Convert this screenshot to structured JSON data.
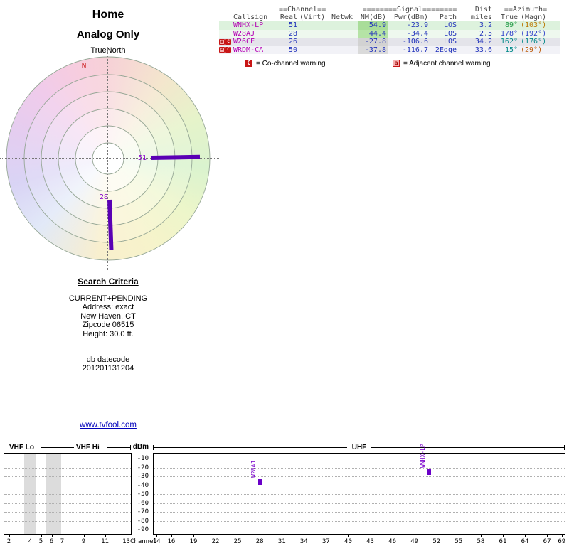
{
  "palette": {
    "bar_purple": "#5a00b4",
    "marker_purple": "#6a00c8",
    "callsign_magenta": "#b400b4",
    "value_blue": "#2233bb",
    "link_blue": "#0000bb",
    "warning_red": "#c81616",
    "north_red": "#cc2222"
  },
  "header": {
    "title": "Home",
    "subtitle": "Analog Only",
    "true_north_label": "TrueNorth",
    "north_marker": "N"
  },
  "radar": {
    "bars": [
      {
        "channel": "51",
        "azimuth_deg": 89,
        "length": 69
      },
      {
        "channel": "28",
        "azimuth_deg": 178,
        "length": 71
      }
    ]
  },
  "station_table": {
    "group_headers": {
      "channel": "==Channel==",
      "signal": "========Signal========",
      "dist": "Dist",
      "azimuth": "==Azimuth="
    },
    "column_headers": {
      "callsign": "Callsign",
      "real": "Real",
      "virt": "(Virt)",
      "netwk": "Netwk",
      "nm": "NM(dB)",
      "pwr": "Pwr(dBm)",
      "path": "Path",
      "miles": "miles",
      "true": "True",
      "magn": "(Magn)"
    },
    "rows": [
      {
        "warnings": [],
        "callsign": "WNHX-LP",
        "real": "51",
        "virt": "",
        "netwk": "",
        "nm": "54.9",
        "pwr": "-23.9",
        "path": "LOS",
        "miles": "3.2",
        "true_az": "89°",
        "magn_az": "(103°)",
        "row_bg": "#ddf2dd",
        "nm_bg": "#a9dd99",
        "true_color": "#1f9944",
        "magn_color": "#bb7700"
      },
      {
        "warnings": [],
        "callsign": "W28AJ",
        "real": "28",
        "virt": "",
        "netwk": "",
        "nm": "44.4",
        "pwr": "-34.4",
        "path": "LOS",
        "miles": "2.5",
        "true_az": "178°",
        "magn_az": "(192°)",
        "row_bg": "#eef8ee",
        "nm_bg": "#b5e3a5",
        "true_color": "#3344cc",
        "magn_color": "#3344cc"
      },
      {
        "warnings": [
          "a",
          "C"
        ],
        "callsign": "W26CE",
        "real": "26",
        "virt": "",
        "netwk": "",
        "nm": "-27.8",
        "pwr": "-106.6",
        "path": "LOS",
        "miles": "34.2",
        "true_az": "162°",
        "magn_az": "(176°)",
        "row_bg": "#e4e4ea",
        "nm_bg": "#d2d2d2",
        "true_color": "#008888",
        "magn_color": "#008888"
      },
      {
        "warnings": [
          "a",
          "C"
        ],
        "callsign": "WRDM-CA",
        "real": "50",
        "virt": "",
        "netwk": "",
        "nm": "-37.8",
        "pwr": "-116.7",
        "path": "2Edge",
        "miles": "33.6",
        "true_az": "15°",
        "magn_az": "(29°)",
        "row_bg": "#f2f2f7",
        "nm_bg": "#dadada",
        "true_color": "#008888",
        "magn_color": "#bb5500"
      }
    ],
    "legend": [
      {
        "badge": "C",
        "style": "co",
        "text": "= Co-channel warning"
      },
      {
        "badge": "a",
        "style": "adj",
        "text": "= Adjacent channel warning"
      }
    ]
  },
  "search_criteria": {
    "title": "Search Criteria",
    "lines": [
      "CURRENT+PENDING",
      "Address: exact",
      "New Haven, CT",
      "Zipcode 06515",
      "Height: 30.0 ft."
    ],
    "datecode_label": "db datecode",
    "datecode_value": "201201131204"
  },
  "link_text": "www.tvfool.com",
  "chart_data": {
    "type": "scatter",
    "title": "",
    "ylabel": "dBm",
    "xlabel": "Channel",
    "bands": {
      "vhf_lo": "VHF Lo",
      "vhf_hi": "VHF Hi",
      "uhf": "UHF"
    },
    "ylim": [
      -95,
      -5
    ],
    "y_ticks": [
      -10,
      -20,
      -30,
      -40,
      -50,
      -60,
      -70,
      -80,
      -90
    ],
    "vhf_range": [
      2,
      13
    ],
    "uhf_range": [
      14,
      69
    ],
    "vhf_channel_ticks": [
      2,
      4,
      5,
      6,
      7,
      9,
      11,
      13
    ],
    "uhf_channel_ticks": [
      14,
      16,
      19,
      22,
      25,
      28,
      31,
      34,
      37,
      40,
      43,
      46,
      49,
      52,
      55,
      58,
      61,
      64,
      67,
      69
    ],
    "shaded_vhf_channel_ranges": [
      [
        3.9,
        5.0
      ],
      [
        5.9,
        7.4
      ]
    ],
    "points": [
      {
        "callsign": "W28AJ",
        "channel": 28,
        "dbm": -34.4
      },
      {
        "callsign": "WNHX-LP",
        "channel": 51,
        "dbm": -23.9
      }
    ]
  }
}
